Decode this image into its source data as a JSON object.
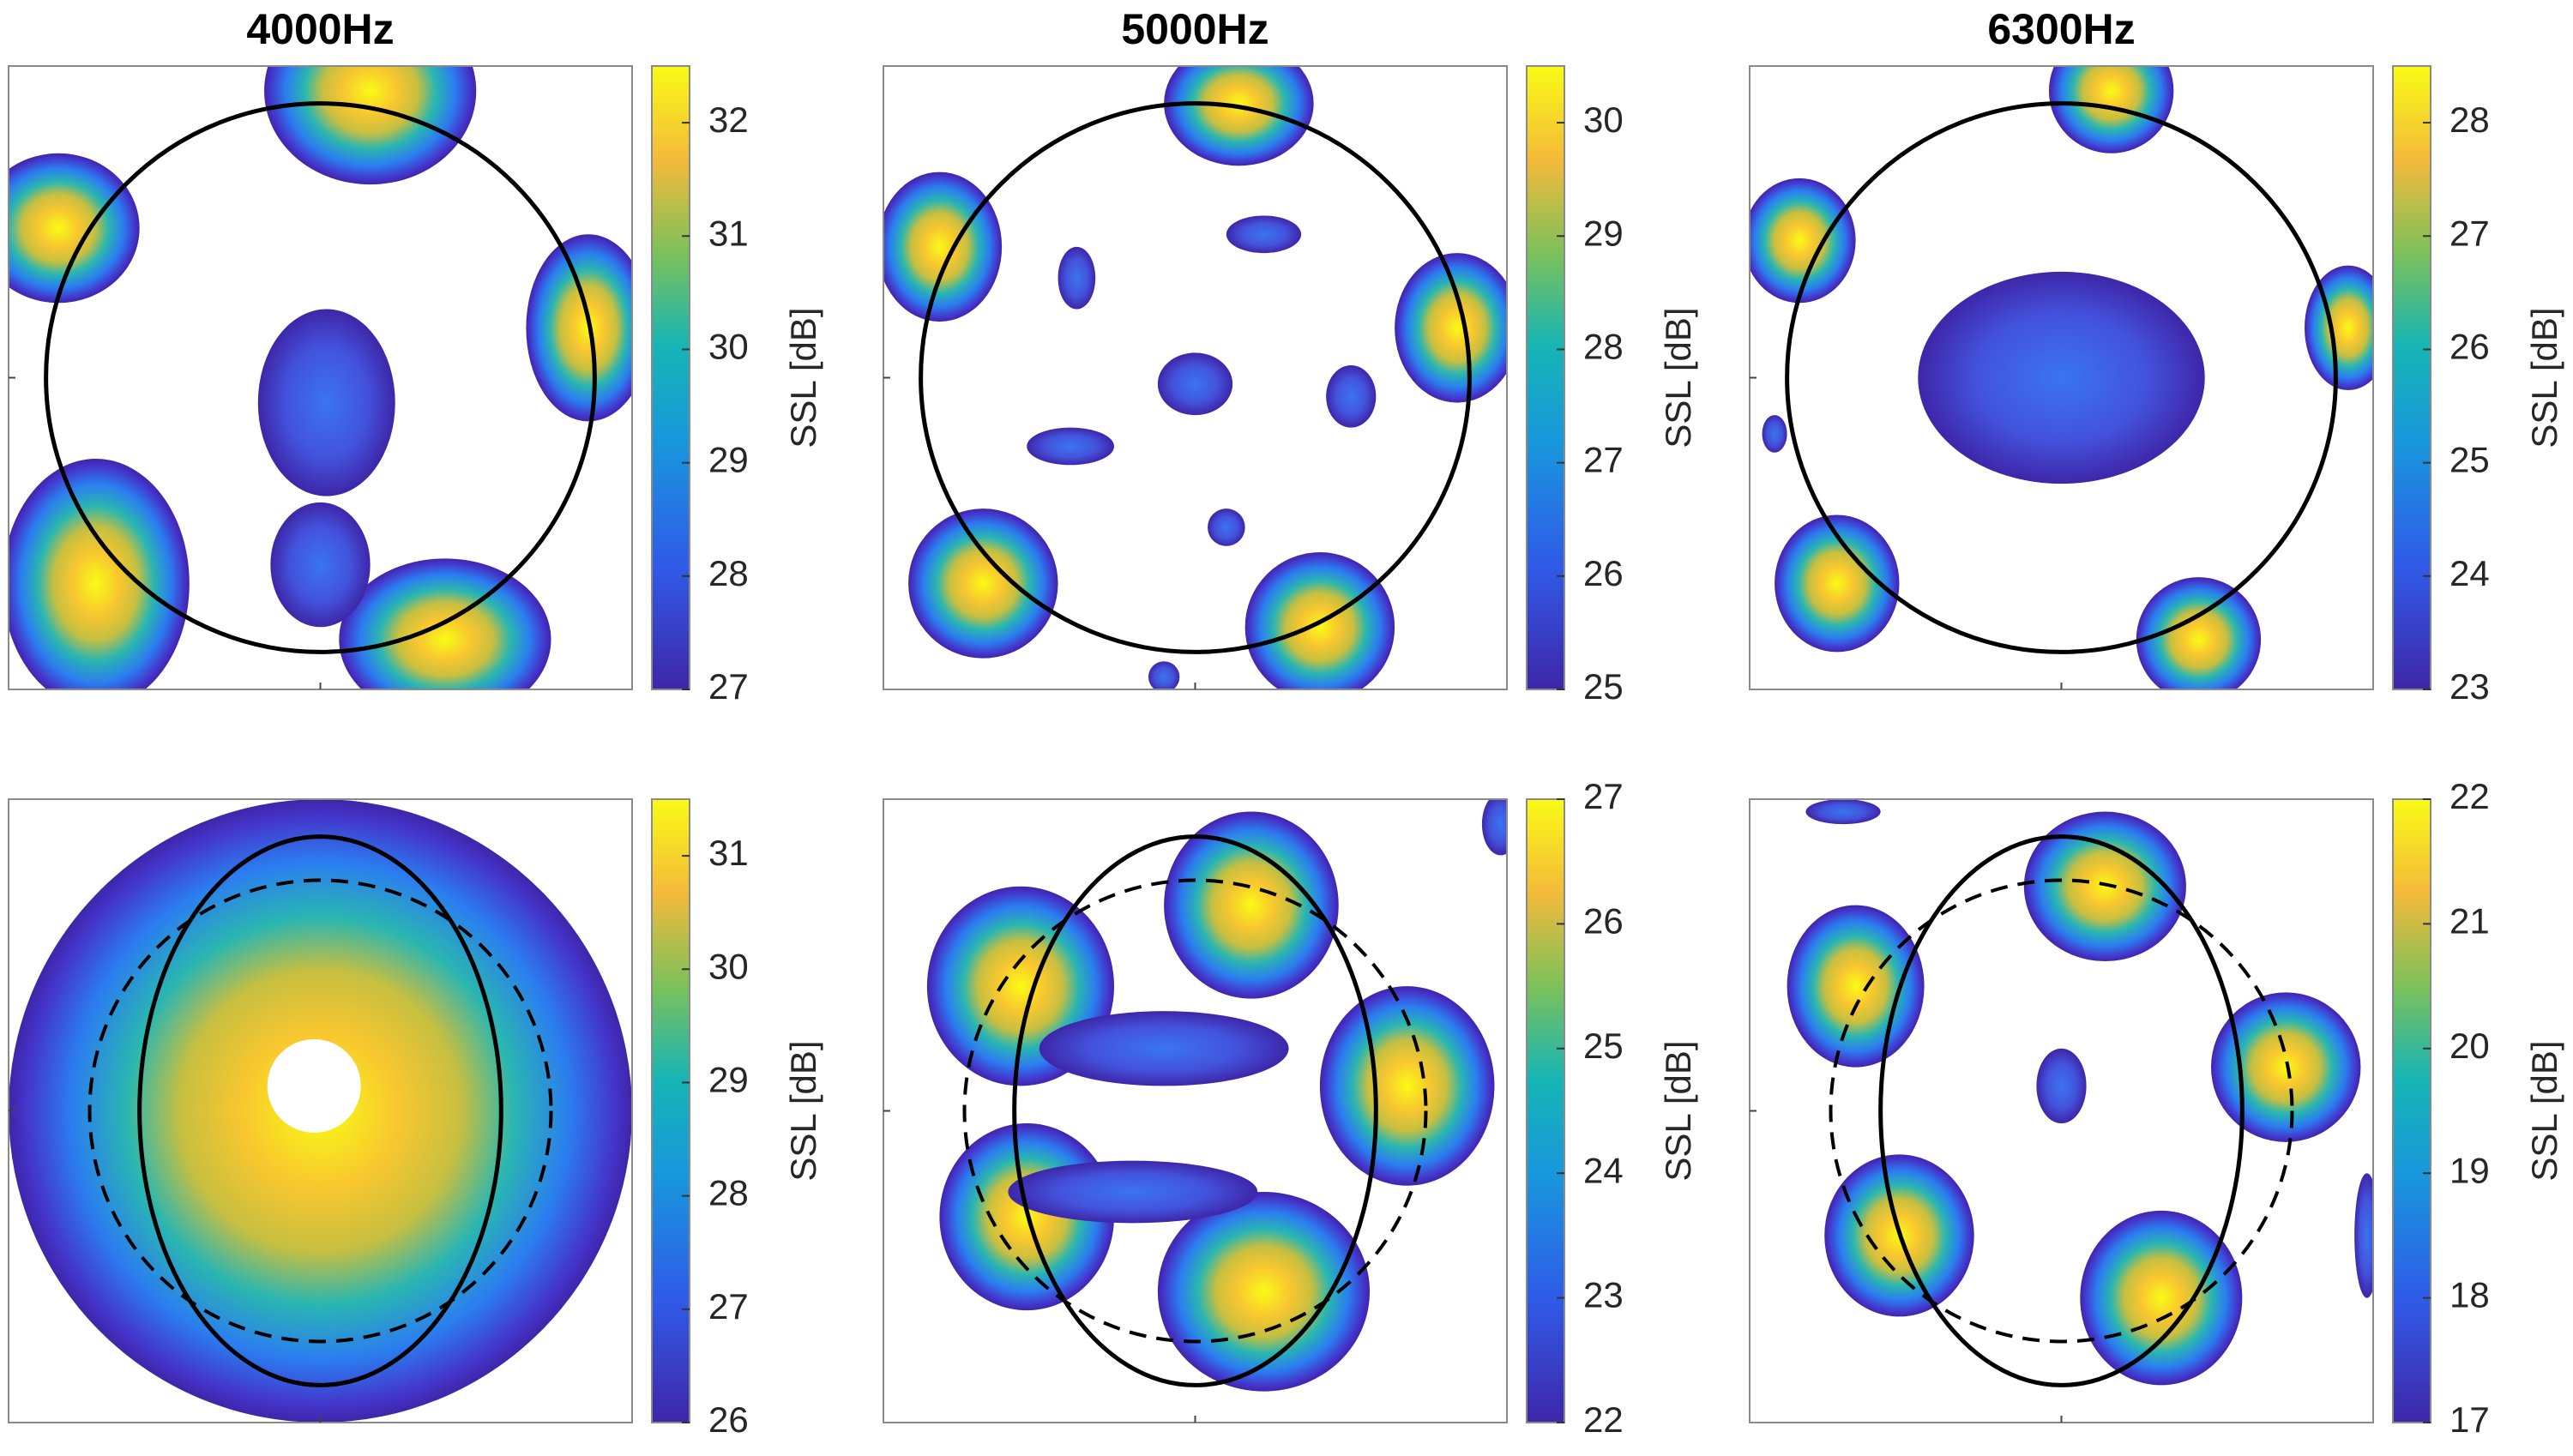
{
  "chart_data": [
    {
      "type": "contour",
      "title": "4000Hz",
      "clim": [
        27,
        32.5
      ],
      "cticks": [
        27,
        28,
        29,
        30,
        31,
        32
      ],
      "colorbar_label": "SSL [dB]"
    },
    {
      "type": "contour",
      "title": "5000Hz",
      "clim": [
        25,
        30.5
      ],
      "cticks": [
        25,
        26,
        27,
        28,
        29,
        30
      ],
      "colorbar_label": "SSL [dB]"
    },
    {
      "type": "contour",
      "title": "6300Hz",
      "clim": [
        23,
        28.5
      ],
      "cticks": [
        23,
        24,
        25,
        26,
        27,
        28
      ],
      "colorbar_label": "SSL [dB]"
    },
    {
      "type": "contour",
      "clim": [
        26,
        31.5
      ],
      "cticks": [
        26,
        27,
        28,
        29,
        30,
        31
      ],
      "colorbar_label": "SSL [dB]"
    },
    {
      "type": "contour",
      "clim": [
        22,
        27
      ],
      "cticks": [
        22,
        23,
        24,
        25,
        26,
        27
      ],
      "colorbar_label": "SSL [dB]"
    },
    {
      "type": "contour",
      "clim": [
        17,
        22
      ],
      "cticks": [
        17,
        18,
        19,
        20,
        21,
        22
      ],
      "colorbar_label": "SSL [dB]"
    }
  ]
}
